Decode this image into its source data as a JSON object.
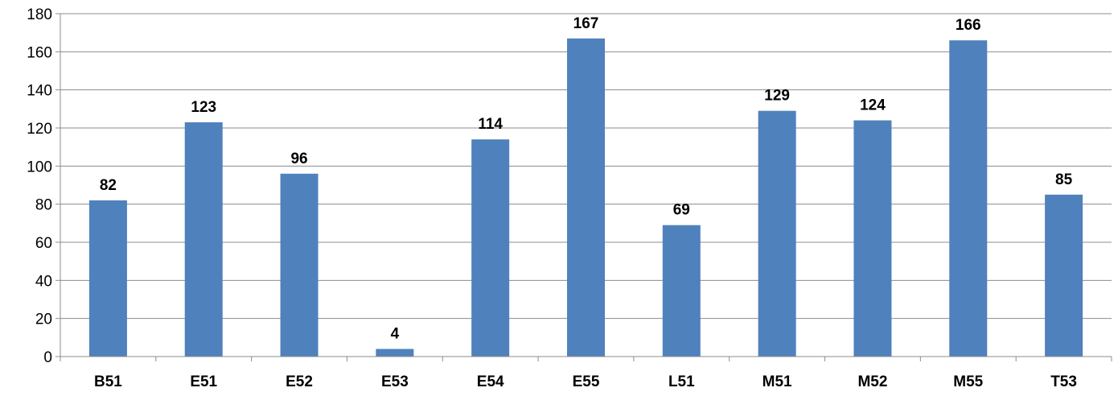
{
  "chart_data": {
    "type": "bar",
    "title": "",
    "xlabel": "",
    "ylabel": "",
    "ylim": [
      0,
      180
    ],
    "ytick_step": 20,
    "grid": true,
    "legend": "none",
    "bar_color": "#4f81bd",
    "grid_color": "#8c8c8c",
    "categories": [
      "B51",
      "E51",
      "E52",
      "E53",
      "E54",
      "E55",
      "L51",
      "M51",
      "M52",
      "M55",
      "T53"
    ],
    "values": [
      82,
      123,
      96,
      4,
      114,
      167,
      69,
      129,
      124,
      166,
      85
    ],
    "data_labels": [
      "82",
      "123",
      "96",
      "4",
      "114",
      "167",
      "69",
      "129",
      "124",
      "166",
      "85"
    ]
  }
}
